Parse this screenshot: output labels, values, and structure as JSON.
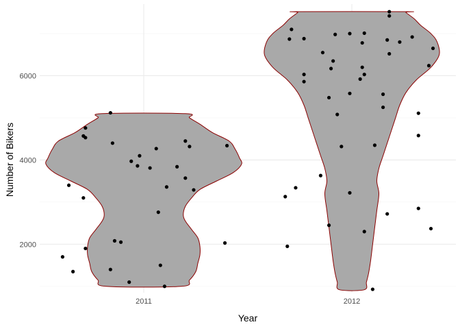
{
  "chart_data": {
    "type": "violin",
    "xlabel": "Year",
    "ylabel": "Number of Bikers",
    "categories": [
      "2011",
      "2012"
    ],
    "ylim": [
      850,
      7700
    ],
    "y_ticks": [
      2000,
      4000,
      6000
    ],
    "grid": "on",
    "legend": "none",
    "colors": {
      "violin_fill": "#a9a9a9",
      "violin_outline": "#8b0000",
      "points": "#000000",
      "grid_major": "#ebebeb",
      "grid_minor": "#f5f5f5"
    },
    "violins": [
      {
        "category": "2011",
        "profile": [
          [
            1000,
            0.18
          ],
          [
            1150,
            0.22
          ],
          [
            1350,
            0.25
          ],
          [
            1550,
            0.26
          ],
          [
            1750,
            0.27
          ],
          [
            1950,
            0.27
          ],
          [
            2150,
            0.26
          ],
          [
            2350,
            0.23
          ],
          [
            2550,
            0.2
          ],
          [
            2700,
            0.19
          ],
          [
            2900,
            0.2
          ],
          [
            3100,
            0.23
          ],
          [
            3300,
            0.27
          ],
          [
            3500,
            0.35
          ],
          [
            3700,
            0.43
          ],
          [
            3900,
            0.47
          ],
          [
            4050,
            0.46
          ],
          [
            4250,
            0.44
          ],
          [
            4450,
            0.41
          ],
          [
            4650,
            0.33
          ],
          [
            4850,
            0.27
          ],
          [
            5000,
            0.22
          ],
          [
            5100,
            0.2
          ]
        ]
      },
      {
        "category": "2012",
        "profile": [
          [
            920,
            0.06
          ],
          [
            1100,
            0.07
          ],
          [
            1300,
            0.08
          ],
          [
            1600,
            0.09
          ],
          [
            2000,
            0.1
          ],
          [
            2400,
            0.11
          ],
          [
            2800,
            0.12
          ],
          [
            3200,
            0.13
          ],
          [
            3500,
            0.12
          ],
          [
            3800,
            0.13
          ],
          [
            4100,
            0.15
          ],
          [
            4400,
            0.17
          ],
          [
            4700,
            0.19
          ],
          [
            5000,
            0.21
          ],
          [
            5300,
            0.23
          ],
          [
            5600,
            0.26
          ],
          [
            5900,
            0.31
          ],
          [
            6200,
            0.38
          ],
          [
            6500,
            0.42
          ],
          [
            6800,
            0.41
          ],
          [
            7000,
            0.38
          ],
          [
            7200,
            0.33
          ],
          [
            7350,
            0.3
          ],
          [
            7500,
            0.26
          ],
          [
            7520,
            0.26
          ]
        ]
      }
    ],
    "points": [
      {
        "category": "2011",
        "jitter": -0.39,
        "y": 1700
      },
      {
        "category": "2011",
        "jitter": -0.34,
        "y": 1350
      },
      {
        "category": "2011",
        "jitter": -0.36,
        "y": 3400
      },
      {
        "category": "2011",
        "jitter": -0.29,
        "y": 3100
      },
      {
        "category": "2011",
        "jitter": -0.28,
        "y": 1900
      },
      {
        "category": "2011",
        "jitter": -0.29,
        "y": 4570
      },
      {
        "category": "2011",
        "jitter": -0.28,
        "y": 4530
      },
      {
        "category": "2011",
        "jitter": -0.28,
        "y": 4760
      },
      {
        "category": "2011",
        "jitter": -0.16,
        "y": 5120
      },
      {
        "category": "2011",
        "jitter": -0.16,
        "y": 1400
      },
      {
        "category": "2011",
        "jitter": -0.14,
        "y": 2080
      },
      {
        "category": "2011",
        "jitter": -0.15,
        "y": 4400
      },
      {
        "category": "2011",
        "jitter": -0.11,
        "y": 2050
      },
      {
        "category": "2011",
        "jitter": -0.07,
        "y": 1100
      },
      {
        "category": "2011",
        "jitter": -0.06,
        "y": 3970
      },
      {
        "category": "2011",
        "jitter": -0.03,
        "y": 3860
      },
      {
        "category": "2011",
        "jitter": -0.02,
        "y": 4100
      },
      {
        "category": "2011",
        "jitter": 0.03,
        "y": 3810
      },
      {
        "category": "2011",
        "jitter": 0.06,
        "y": 4270
      },
      {
        "category": "2011",
        "jitter": 0.07,
        "y": 2760
      },
      {
        "category": "2011",
        "jitter": 0.08,
        "y": 1500
      },
      {
        "category": "2011",
        "jitter": 0.1,
        "y": 1000
      },
      {
        "category": "2011",
        "jitter": 0.11,
        "y": 3360
      },
      {
        "category": "2011",
        "jitter": 0.16,
        "y": 3840
      },
      {
        "category": "2011",
        "jitter": 0.2,
        "y": 4450
      },
      {
        "category": "2011",
        "jitter": 0.2,
        "y": 3570
      },
      {
        "category": "2011",
        "jitter": 0.22,
        "y": 4320
      },
      {
        "category": "2011",
        "jitter": 0.24,
        "y": 3290
      },
      {
        "category": "2011",
        "jitter": 0.39,
        "y": 2030
      },
      {
        "category": "2011",
        "jitter": 0.4,
        "y": 4340
      },
      {
        "category": "2012",
        "jitter": -0.32,
        "y": 3130
      },
      {
        "category": "2012",
        "jitter": -0.31,
        "y": 1950
      },
      {
        "category": "2012",
        "jitter": -0.3,
        "y": 6870
      },
      {
        "category": "2012",
        "jitter": -0.29,
        "y": 7100
      },
      {
        "category": "2012",
        "jitter": -0.27,
        "y": 3340
      },
      {
        "category": "2012",
        "jitter": -0.23,
        "y": 6030
      },
      {
        "category": "2012",
        "jitter": -0.23,
        "y": 5860
      },
      {
        "category": "2012",
        "jitter": -0.23,
        "y": 6880
      },
      {
        "category": "2012",
        "jitter": -0.15,
        "y": 3630
      },
      {
        "category": "2012",
        "jitter": -0.14,
        "y": 6550
      },
      {
        "category": "2012",
        "jitter": -0.11,
        "y": 2450
      },
      {
        "category": "2012",
        "jitter": -0.11,
        "y": 5480
      },
      {
        "category": "2012",
        "jitter": -0.1,
        "y": 6170
      },
      {
        "category": "2012",
        "jitter": -0.09,
        "y": 6350
      },
      {
        "category": "2012",
        "jitter": -0.08,
        "y": 6980
      },
      {
        "category": "2012",
        "jitter": -0.07,
        "y": 5080
      },
      {
        "category": "2012",
        "jitter": -0.05,
        "y": 4320
      },
      {
        "category": "2012",
        "jitter": -0.01,
        "y": 7000
      },
      {
        "category": "2012",
        "jitter": -0.01,
        "y": 3220
      },
      {
        "category": "2012",
        "jitter": -0.01,
        "y": 5580
      },
      {
        "category": "2012",
        "jitter": 0.04,
        "y": 5920
      },
      {
        "category": "2012",
        "jitter": 0.05,
        "y": 6780
      },
      {
        "category": "2012",
        "jitter": 0.05,
        "y": 6200
      },
      {
        "category": "2012",
        "jitter": 0.06,
        "y": 6030
      },
      {
        "category": "2012",
        "jitter": 0.06,
        "y": 7010
      },
      {
        "category": "2012",
        "jitter": 0.06,
        "y": 2300
      },
      {
        "category": "2012",
        "jitter": 0.1,
        "y": 930
      },
      {
        "category": "2012",
        "jitter": 0.11,
        "y": 4350
      },
      {
        "category": "2012",
        "jitter": 0.15,
        "y": 5560
      },
      {
        "category": "2012",
        "jitter": 0.15,
        "y": 5250
      },
      {
        "category": "2012",
        "jitter": 0.18,
        "y": 7520
      },
      {
        "category": "2012",
        "jitter": 0.18,
        "y": 7420
      },
      {
        "category": "2012",
        "jitter": 0.17,
        "y": 6850
      },
      {
        "category": "2012",
        "jitter": 0.18,
        "y": 6520
      },
      {
        "category": "2012",
        "jitter": 0.17,
        "y": 2720
      },
      {
        "category": "2012",
        "jitter": 0.23,
        "y": 6800
      },
      {
        "category": "2012",
        "jitter": 0.29,
        "y": 6920
      },
      {
        "category": "2012",
        "jitter": 0.32,
        "y": 5110
      },
      {
        "category": "2012",
        "jitter": 0.32,
        "y": 4580
      },
      {
        "category": "2012",
        "jitter": 0.32,
        "y": 2850
      },
      {
        "category": "2012",
        "jitter": 0.37,
        "y": 6240
      },
      {
        "category": "2012",
        "jitter": 0.39,
        "y": 6650
      },
      {
        "category": "2012",
        "jitter": 0.38,
        "y": 2370
      }
    ]
  }
}
